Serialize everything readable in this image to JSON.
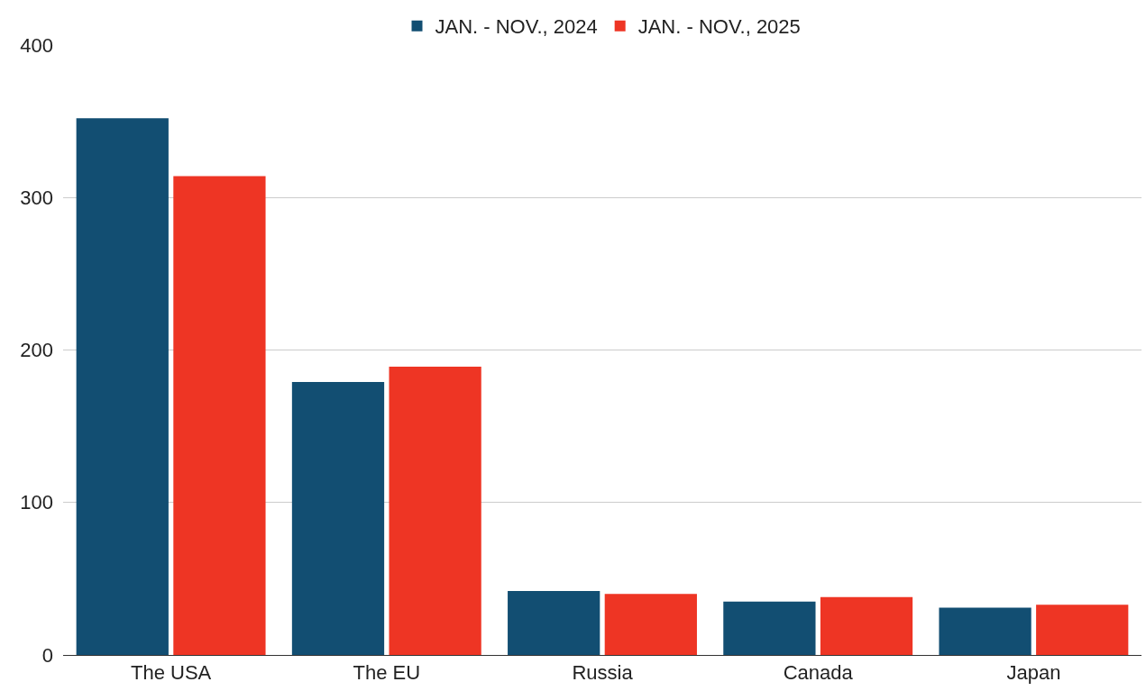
{
  "chart_data": {
    "type": "bar",
    "categories": [
      "The USA",
      "The EU",
      "Russia",
      "Canada",
      "Japan"
    ],
    "series": [
      {
        "name": "JAN. - NOV., 2024",
        "color": "#124e72",
        "values": [
          352,
          179,
          42,
          35,
          31
        ]
      },
      {
        "name": "JAN. - NOV., 2025",
        "color": "#ee3524",
        "values": [
          314,
          189,
          40,
          38,
          33
        ]
      }
    ],
    "ylim": [
      0,
      400
    ],
    "yticks": [
      0,
      100,
      200,
      300,
      400
    ],
    "grid": "y",
    "legend": "top"
  }
}
